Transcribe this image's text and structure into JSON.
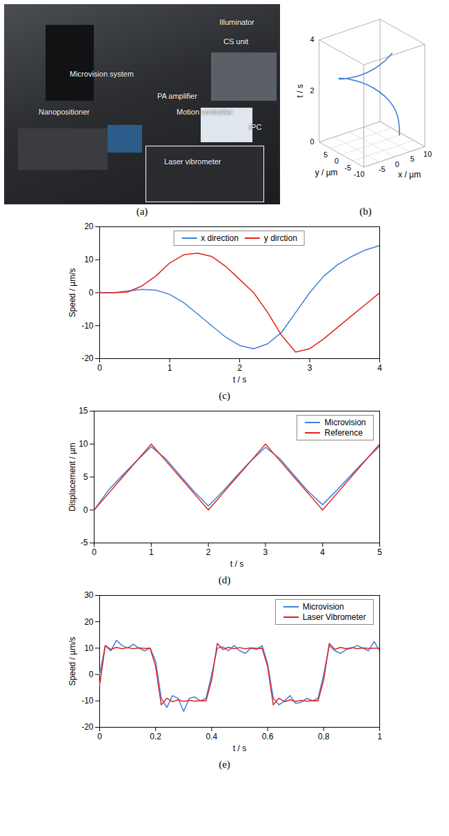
{
  "photo": {
    "caption": "(a)",
    "labels": [
      "Microvision system",
      "Nanopositioner",
      "PA amplifier",
      "Illuminator",
      "CS unit",
      "Motion controller",
      "IPC",
      "Laser vibrometer"
    ]
  },
  "chart_data": [
    {
      "type": "line3d",
      "caption": "(b)",
      "color": "#3d7fdb",
      "xlabel": "x / µm",
      "ylabel": "y / µm",
      "tlabel": "t / s",
      "t": [
        0,
        0.25,
        0.5,
        0.75,
        1,
        1.25,
        1.5,
        1.75,
        2,
        2.25,
        2.5,
        2.75,
        3,
        3.25,
        3.5,
        3.75,
        4
      ],
      "x": [
        9,
        9,
        8.99,
        8.95,
        8.73,
        8.09,
        6.69,
        4.5,
        1.25,
        -2.48,
        -6.02,
        -8.46,
        -8.91,
        -7.46,
        -5.03,
        -2.48,
        0
      ],
      "y": [
        0,
        0,
        0.31,
        0.94,
        2.18,
        3.95,
        6.02,
        7.79,
        8.91,
        8.65,
        6.69,
        3.08,
        -1.25,
        -5.03,
        -7.46,
        -8.65,
        -9
      ],
      "xlim": [
        -10,
        10
      ],
      "xticks": [
        -5,
        0,
        5,
        10
      ],
      "ylim": [
        -10,
        10
      ],
      "yticks": [
        -10,
        -5,
        0,
        5
      ],
      "tlim": [
        0,
        4
      ],
      "tticks": [
        0,
        2,
        4
      ]
    },
    {
      "type": "line",
      "caption": "(c)",
      "xlabel": "t / s",
      "ylabel": "Speed / µm/s",
      "legend": "top",
      "grid": false,
      "x": [
        0,
        0.2,
        0.4,
        0.6,
        0.8,
        1,
        1.2,
        1.4,
        1.6,
        1.8,
        2,
        2.2,
        2.4,
        2.6,
        2.8,
        3,
        3.2,
        3.4,
        3.6,
        3.8,
        4
      ],
      "xlim": [
        0,
        4
      ],
      "xticks": [
        0,
        1,
        2,
        3,
        4
      ],
      "ylim": [
        -20,
        20
      ],
      "yticks": [
        -20,
        -10,
        0,
        10,
        20
      ],
      "series": [
        {
          "name": "x direction",
          "color": "#3d7fdb",
          "values": [
            0,
            0,
            0.5,
            1,
            0.8,
            -0.5,
            -3,
            -6.5,
            -10,
            -13.5,
            -16,
            -17,
            -15.5,
            -12,
            -6,
            0,
            5,
            8.5,
            11,
            13,
            14.3
          ]
        },
        {
          "name": "y dirction",
          "color": "#e0201b",
          "values": [
            0,
            0,
            0.2,
            2,
            5,
            9,
            11.5,
            12,
            11,
            8,
            4,
            0,
            -6,
            -13,
            -18,
            -17,
            -14,
            -10.5,
            -7,
            -3.5,
            0
          ]
        }
      ]
    },
    {
      "type": "line",
      "caption": "(d)",
      "xlabel": "t / s",
      "ylabel": "Displacement / µm",
      "legend": "top-right",
      "grid": false,
      "x": [
        0,
        0.25,
        0.5,
        0.75,
        1,
        1.25,
        1.5,
        1.75,
        2,
        2.25,
        2.5,
        2.75,
        3,
        3.25,
        3.5,
        3.75,
        4,
        4.25,
        4.5,
        4.75,
        5
      ],
      "xlim": [
        0,
        5
      ],
      "xticks": [
        0,
        1,
        2,
        3,
        4,
        5
      ],
      "ylim": [
        -5,
        15
      ],
      "yticks": [
        -5,
        0,
        5,
        10,
        15
      ],
      "series": [
        {
          "name": "Microvision",
          "color": "#3d7fdb",
          "values": [
            0,
            3,
            5.3,
            7.5,
            9.6,
            7.8,
            5.3,
            2.8,
            0.6,
            2.8,
            5.2,
            7.5,
            9.5,
            7.8,
            5.3,
            2.8,
            0.8,
            3,
            5.3,
            7.6,
            9.7
          ]
        },
        {
          "name": "Reference",
          "color": "#e0201b",
          "values": [
            0,
            2.5,
            5,
            7.5,
            10,
            7.5,
            5,
            2.5,
            0,
            2.5,
            5,
            7.5,
            10,
            7.5,
            5,
            2.5,
            0,
            2.5,
            5,
            7.5,
            10
          ]
        }
      ]
    },
    {
      "type": "line",
      "caption": "(e)",
      "xlabel": "t / s",
      "ylabel": "Speed / µm/s",
      "legend": "top-right",
      "grid": false,
      "x": [
        0,
        0.02,
        0.04,
        0.06,
        0.08,
        0.1,
        0.12,
        0.14,
        0.16,
        0.18,
        0.2,
        0.22,
        0.24,
        0.26,
        0.28,
        0.3,
        0.32,
        0.34,
        0.36,
        0.38,
        0.4,
        0.42,
        0.44,
        0.46,
        0.48,
        0.5,
        0.52,
        0.54,
        0.56,
        0.58,
        0.6,
        0.62,
        0.64,
        0.66,
        0.68,
        0.7,
        0.72,
        0.74,
        0.76,
        0.78,
        0.8,
        0.82,
        0.84,
        0.86,
        0.88,
        0.9,
        0.92,
        0.94,
        0.96,
        0.98,
        1
      ],
      "xlim": [
        0,
        1
      ],
      "xticks": [
        0,
        0.2,
        0.4,
        0.6,
        0.8,
        1
      ],
      "ylim": [
        -20,
        30
      ],
      "yticks": [
        -20,
        -10,
        0,
        10,
        20,
        30
      ],
      "series": [
        {
          "name": "Microvision",
          "color": "#3d7fdb",
          "values": [
            0,
            11,
            9,
            13,
            11,
            10,
            11.5,
            10,
            9,
            10,
            5,
            -9,
            -12.5,
            -8,
            -9,
            -14,
            -9,
            -8.5,
            -10,
            -9,
            0,
            10,
            10.5,
            9,
            11,
            9,
            8,
            10,
            9.5,
            11,
            4,
            -9,
            -11.5,
            -10,
            -8,
            -11,
            -10.5,
            -9,
            -10,
            -9,
            0,
            11,
            9,
            8,
            9.5,
            10,
            11,
            10,
            9,
            12.5,
            9
          ]
        },
        {
          "name": "Laser Vibrometer",
          "color": "#e0201b",
          "values": [
            -4,
            11,
            9.5,
            10.3,
            9.8,
            10.2,
            9.8,
            10.1,
            9.9,
            10,
            3,
            -11.5,
            -9,
            -10.3,
            -9.6,
            -10.2,
            -9.8,
            -10.1,
            -9.9,
            -10,
            -2,
            11.8,
            9.5,
            10.3,
            9.8,
            10.2,
            9.8,
            10.1,
            9.9,
            10,
            3,
            -11.5,
            -9,
            -10.3,
            -9.6,
            -10.2,
            -9.8,
            -10.1,
            -9.9,
            -10,
            -2,
            11.8,
            9.5,
            10.3,
            9.8,
            10.2,
            9.8,
            10.1,
            9.9,
            10,
            10
          ]
        }
      ]
    }
  ]
}
